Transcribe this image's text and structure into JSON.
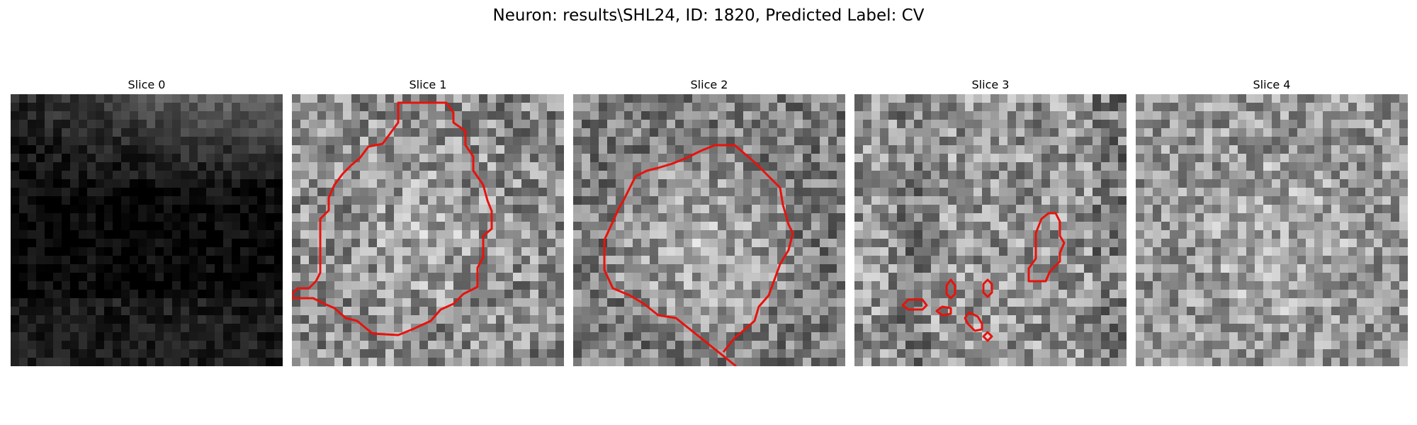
{
  "figure": {
    "title": "Neuron: results\\SHL24, ID: 1820, Predicted Label: CV",
    "contour_color": "#e8120c",
    "colormap": "gray"
  },
  "slices": [
    {
      "label": "Slice 0",
      "has_contour": false
    },
    {
      "label": "Slice 1",
      "has_contour": true
    },
    {
      "label": "Slice 2",
      "has_contour": true
    },
    {
      "label": "Slice 3",
      "has_contour": true
    },
    {
      "label": "Slice 4",
      "has_contour": false
    }
  ]
}
